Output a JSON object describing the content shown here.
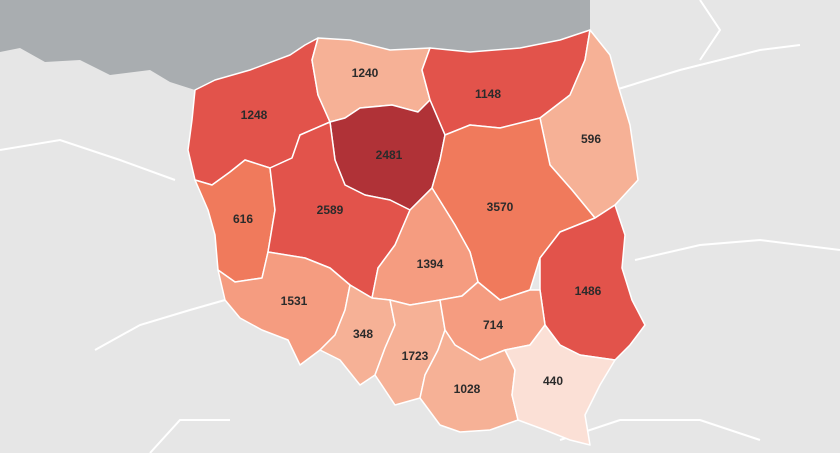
{
  "map": {
    "colors": {
      "background_land": "#e6e6e6",
      "sea": "#a9adb0",
      "country_border": "#ffffff",
      "region_stroke": "#ffffff",
      "label_text": "#2b2b2b"
    },
    "scale_colors": {
      "very_low": "#fbe0d6",
      "low": "#f6b196",
      "mid_low": "#f59c80",
      "mid": "#f07a5c",
      "high": "#e2534b",
      "very_high": "#b03237"
    },
    "regions": [
      {
        "name": "zachodniopomorskie",
        "value": "1248",
        "level": "high"
      },
      {
        "name": "pomorskie",
        "value": "1240",
        "level": "low"
      },
      {
        "name": "warminsko-mazurskie",
        "value": "1148",
        "level": "high"
      },
      {
        "name": "podlaskie",
        "value": "596",
        "level": "low"
      },
      {
        "name": "kujawsko-pomorskie",
        "value": "2481",
        "level": "very_high"
      },
      {
        "name": "lubuskie",
        "value": "616",
        "level": "mid"
      },
      {
        "name": "wielkopolskie",
        "value": "2589",
        "level": "high"
      },
      {
        "name": "mazowieckie",
        "value": "3570",
        "level": "mid"
      },
      {
        "name": "lodzkie",
        "value": "1394",
        "level": "mid_low"
      },
      {
        "name": "lubelskie",
        "value": "1486",
        "level": "high"
      },
      {
        "name": "dolnoslaskie",
        "value": "1531",
        "level": "mid_low"
      },
      {
        "name": "opolskie",
        "value": "348",
        "level": "low"
      },
      {
        "name": "slaskie",
        "value": "1723",
        "level": "low"
      },
      {
        "name": "swietokrzyskie",
        "value": "714",
        "level": "mid_low"
      },
      {
        "name": "malopolskie",
        "value": "1028",
        "level": "low"
      },
      {
        "name": "podkarpackie",
        "value": "440",
        "level": "very_low"
      }
    ]
  }
}
